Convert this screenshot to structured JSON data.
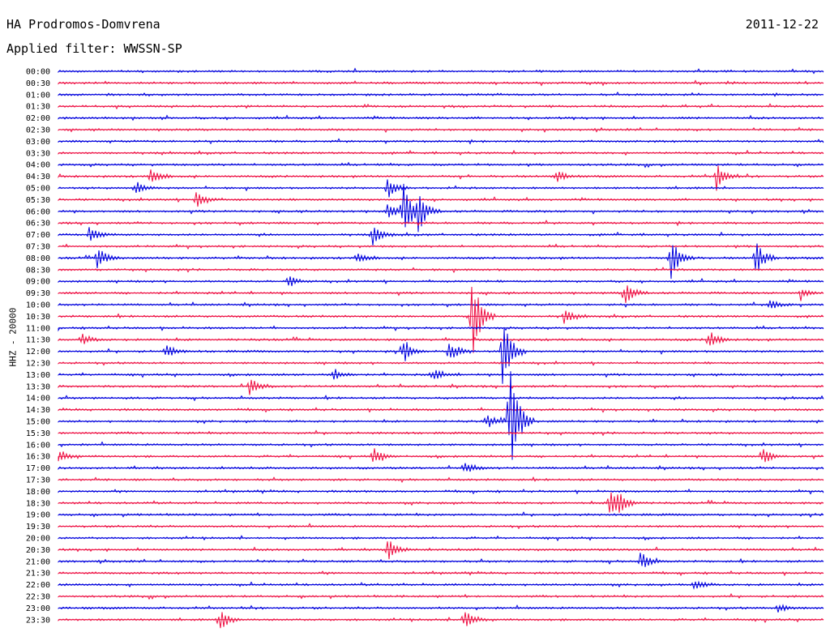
{
  "header": {
    "station": "HA Prodromos-Domvrena",
    "date": "2011-12-22",
    "filter": "Applied filter: WWSSN-SP"
  },
  "chart_data": {
    "type": "line",
    "title": "HA Prodromos-Domvrena",
    "ylabel": "HHZ - 20000",
    "colors": {
      "even_rows": "#0000dd",
      "odd_rows": "#ee1144"
    },
    "rows": [
      {
        "label": "00:00"
      },
      {
        "label": "00:30"
      },
      {
        "label": "01:00"
      },
      {
        "label": "01:30"
      },
      {
        "label": "02:00"
      },
      {
        "label": "02:30"
      },
      {
        "label": "03:00"
      },
      {
        "label": "03:30"
      },
      {
        "label": "04:00"
      },
      {
        "label": "04:30"
      },
      {
        "label": "05:00"
      },
      {
        "label": "05:30"
      },
      {
        "label": "06:00"
      },
      {
        "label": "06:30"
      },
      {
        "label": "07:00"
      },
      {
        "label": "07:30"
      },
      {
        "label": "08:00"
      },
      {
        "label": "08:30"
      },
      {
        "label": "09:00"
      },
      {
        "label": "09:30"
      },
      {
        "label": "10:00"
      },
      {
        "label": "10:30"
      },
      {
        "label": "11:00"
      },
      {
        "label": "11:30"
      },
      {
        "label": "12:00"
      },
      {
        "label": "12:30"
      },
      {
        "label": "13:00"
      },
      {
        "label": "13:30"
      },
      {
        "label": "14:00"
      },
      {
        "label": "14:30"
      },
      {
        "label": "15:00"
      },
      {
        "label": "15:30"
      },
      {
        "label": "16:00"
      },
      {
        "label": "16:30"
      },
      {
        "label": "17:00"
      },
      {
        "label": "17:30"
      },
      {
        "label": "18:00"
      },
      {
        "label": "18:30"
      },
      {
        "label": "19:00"
      },
      {
        "label": "19:30"
      },
      {
        "label": "20:00"
      },
      {
        "label": "20:30"
      },
      {
        "label": "21:00"
      },
      {
        "label": "21:30"
      },
      {
        "label": "22:00"
      },
      {
        "label": "22:30"
      },
      {
        "label": "23:00"
      },
      {
        "label": "23:30"
      }
    ],
    "events": [
      {
        "row": 9,
        "t": 0.12,
        "amp": 12
      },
      {
        "row": 9,
        "t": 0.65,
        "amp": 8
      },
      {
        "row": 9,
        "t": 0.86,
        "amp": 18
      },
      {
        "row": 10,
        "t": 0.1,
        "amp": 10
      },
      {
        "row": 10,
        "t": 0.43,
        "amp": 14
      },
      {
        "row": 11,
        "t": 0.18,
        "amp": 14
      },
      {
        "row": 12,
        "t": 0.43,
        "amp": 10
      },
      {
        "row": 12,
        "t": 0.45,
        "amp": 40
      },
      {
        "row": 12,
        "t": 0.47,
        "amp": 25
      },
      {
        "row": 14,
        "t": 0.04,
        "amp": 10
      },
      {
        "row": 14,
        "t": 0.41,
        "amp": 14
      },
      {
        "row": 16,
        "t": 0.05,
        "amp": 16
      },
      {
        "row": 16,
        "t": 0.39,
        "amp": 8
      },
      {
        "row": 16,
        "t": 0.8,
        "amp": 30
      },
      {
        "row": 16,
        "t": 0.91,
        "amp": 25
      },
      {
        "row": 18,
        "t": 0.3,
        "amp": 8
      },
      {
        "row": 19,
        "t": 0.74,
        "amp": 16
      },
      {
        "row": 19,
        "t": 0.97,
        "amp": 8
      },
      {
        "row": 20,
        "t": 0.93,
        "amp": 8
      },
      {
        "row": 21,
        "t": 0.66,
        "amp": 10
      },
      {
        "row": 21,
        "t": 0.54,
        "amp": 60
      },
      {
        "row": 23,
        "t": 0.03,
        "amp": 8
      },
      {
        "row": 23,
        "t": 0.85,
        "amp": 14
      },
      {
        "row": 24,
        "t": 0.14,
        "amp": 10
      },
      {
        "row": 24,
        "t": 0.45,
        "amp": 18
      },
      {
        "row": 24,
        "t": 0.51,
        "amp": 16
      },
      {
        "row": 24,
        "t": 0.58,
        "amp": 55
      },
      {
        "row": 26,
        "t": 0.36,
        "amp": 8
      },
      {
        "row": 26,
        "t": 0.49,
        "amp": 8
      },
      {
        "row": 27,
        "t": 0.25,
        "amp": 14
      },
      {
        "row": 30,
        "t": 0.56,
        "amp": 10
      },
      {
        "row": 30,
        "t": 0.59,
        "amp": 80
      },
      {
        "row": 33,
        "t": 0.0,
        "amp": 10
      },
      {
        "row": 33,
        "t": 0.41,
        "amp": 12
      },
      {
        "row": 33,
        "t": 0.92,
        "amp": 12
      },
      {
        "row": 34,
        "t": 0.53,
        "amp": 10
      },
      {
        "row": 37,
        "t": 0.72,
        "amp": 20
      },
      {
        "row": 37,
        "t": 0.73,
        "amp": 14
      },
      {
        "row": 41,
        "t": 0.43,
        "amp": 16
      },
      {
        "row": 42,
        "t": 0.76,
        "amp": 14
      },
      {
        "row": 44,
        "t": 0.83,
        "amp": 8
      },
      {
        "row": 46,
        "t": 0.94,
        "amp": 6
      },
      {
        "row": 47,
        "t": 0.21,
        "amp": 16
      },
      {
        "row": 47,
        "t": 0.53,
        "amp": 18
      }
    ]
  }
}
